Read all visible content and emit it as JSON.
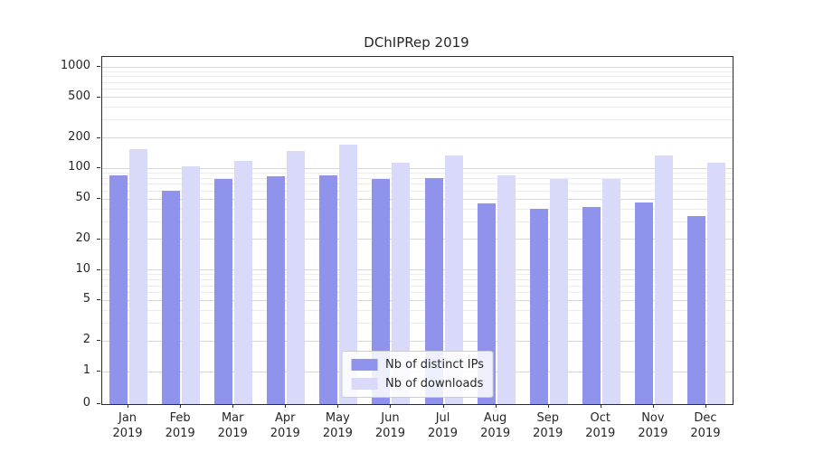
{
  "title": "DChIPRep 2019",
  "chart_data": {
    "type": "bar",
    "title": "DChIPRep 2019",
    "xlabel": "",
    "ylabel": "",
    "yscale": "symlog",
    "ylim": [
      0,
      1000
    ],
    "yticks": [
      0,
      1,
      2,
      5,
      10,
      20,
      50,
      100,
      200,
      500,
      1000
    ],
    "grid": true,
    "legend_position": "lower center",
    "categories": [
      "Jan 2019",
      "Feb 2019",
      "Mar 2019",
      "Apr 2019",
      "May 2019",
      "Jun 2019",
      "Jul 2019",
      "Aug 2019",
      "Sep 2019",
      "Oct 2019",
      "Nov 2019",
      "Dec 2019"
    ],
    "series": [
      {
        "name": "Nb of distinct IPs",
        "color": "#9093ec",
        "values": [
          85,
          60,
          79,
          83,
          86,
          79,
          80,
          45,
          40,
          42,
          46,
          34
        ]
      },
      {
        "name": "Nb of downloads",
        "color": "#d9d9f9",
        "values": [
          155,
          105,
          118,
          150,
          170,
          115,
          135,
          85,
          78,
          78,
          135,
          115
        ]
      }
    ]
  }
}
